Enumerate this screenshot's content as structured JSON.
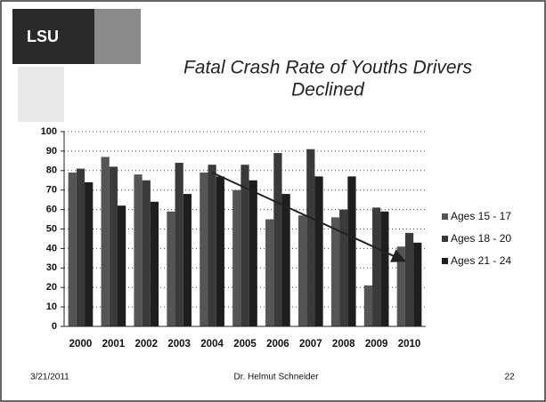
{
  "logo_text": "LSU",
  "footer": {
    "date": "3/21/2011",
    "author": "Dr. Helmut Schneider",
    "page": "22"
  },
  "chart_data": {
    "type": "bar",
    "title": [
      "Fatal Crash Rate of Youths Drivers",
      "Declined"
    ],
    "categories": [
      "2000",
      "2001",
      "2002",
      "2003",
      "2004",
      "2005",
      "2006",
      "2007",
      "2008",
      "2009",
      "2010"
    ],
    "series": [
      {
        "name": "Ages 15 - 17",
        "color": "#555555",
        "values": [
          79,
          87,
          78,
          59,
          79,
          70,
          55,
          57,
          56,
          21,
          41
        ]
      },
      {
        "name": "Ages 18 - 20",
        "color": "#3a3a3a",
        "values": [
          81,
          82,
          75,
          84,
          83,
          83,
          89,
          91,
          60,
          61,
          48
        ]
      },
      {
        "name": "Ages 21 - 24",
        "color": "#1e1e1e",
        "values": [
          74,
          62,
          64,
          68,
          77,
          75,
          68,
          77,
          77,
          59,
          43
        ]
      }
    ],
    "ylim": [
      0,
      100
    ],
    "yticks": [
      0,
      10,
      20,
      30,
      40,
      50,
      60,
      70,
      80,
      90,
      100
    ],
    "grid": true,
    "legend": "right"
  }
}
